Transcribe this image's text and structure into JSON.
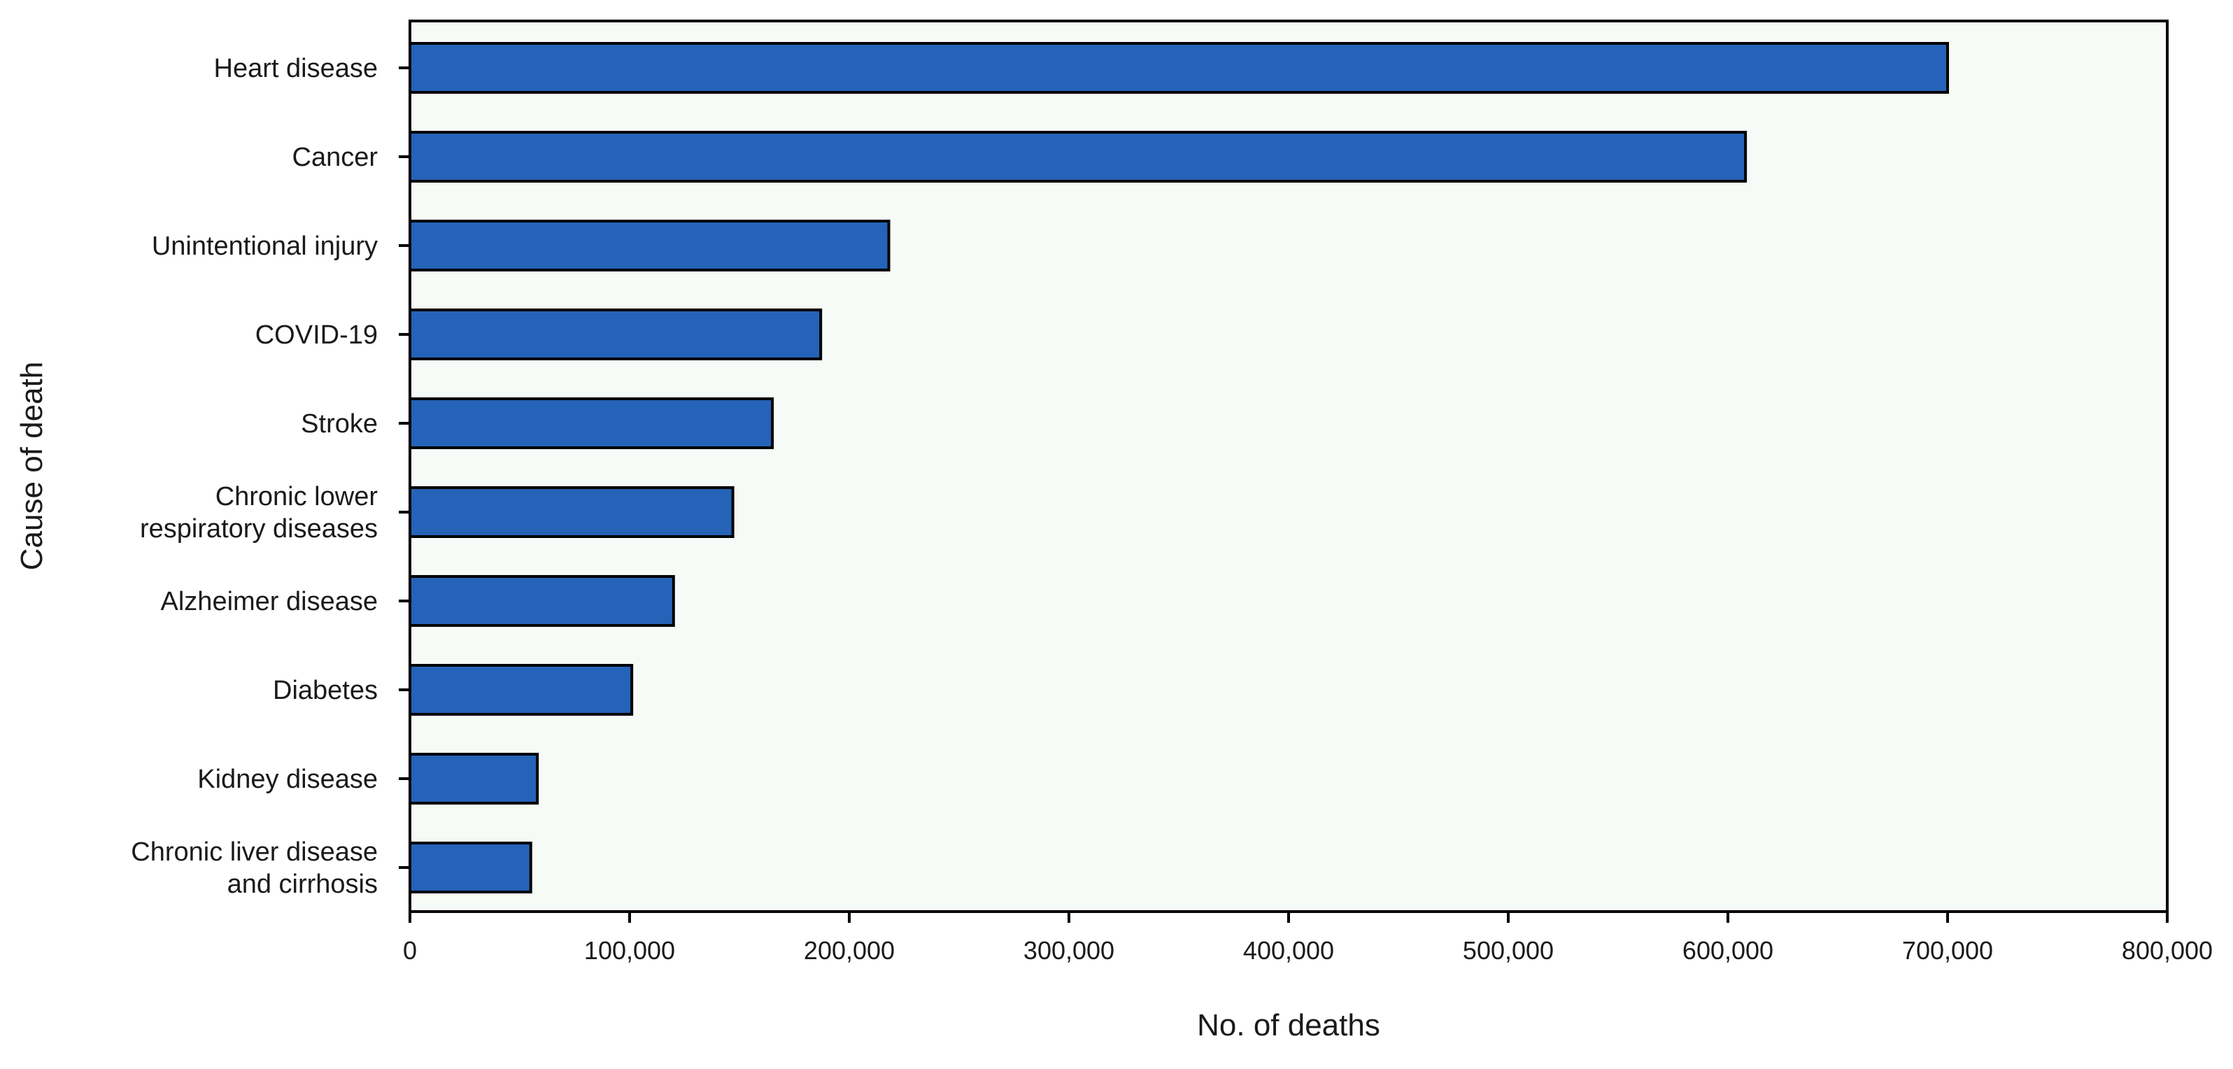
{
  "chart_data": {
    "type": "bar",
    "orientation": "horizontal",
    "categories": [
      [
        "Heart disease"
      ],
      [
        "Cancer"
      ],
      [
        "Unintentional injury"
      ],
      [
        "COVID-19"
      ],
      [
        "Stroke"
      ],
      [
        "Chronic lower",
        "respiratory diseases"
      ],
      [
        "Alzheimer disease"
      ],
      [
        "Diabetes"
      ],
      [
        "Kidney disease"
      ],
      [
        "Chronic liver disease",
        "and cirrhosis"
      ]
    ],
    "values": [
      700000,
      608000,
      218000,
      187000,
      165000,
      147000,
      120000,
      101000,
      58000,
      55000
    ],
    "xlabel": "No. of deaths",
    "ylabel": "Cause of death",
    "xlim": [
      0,
      800000
    ],
    "xticks": [
      0,
      100000,
      200000,
      300000,
      400000,
      500000,
      600000,
      700000,
      800000
    ],
    "xtick_labels": [
      "0",
      "100,000",
      "200,000",
      "300,000",
      "400,000",
      "500,000",
      "600,000",
      "700,000",
      "800,000"
    ],
    "bar_color": "#2563b8",
    "grid": false,
    "legend": "none"
  }
}
